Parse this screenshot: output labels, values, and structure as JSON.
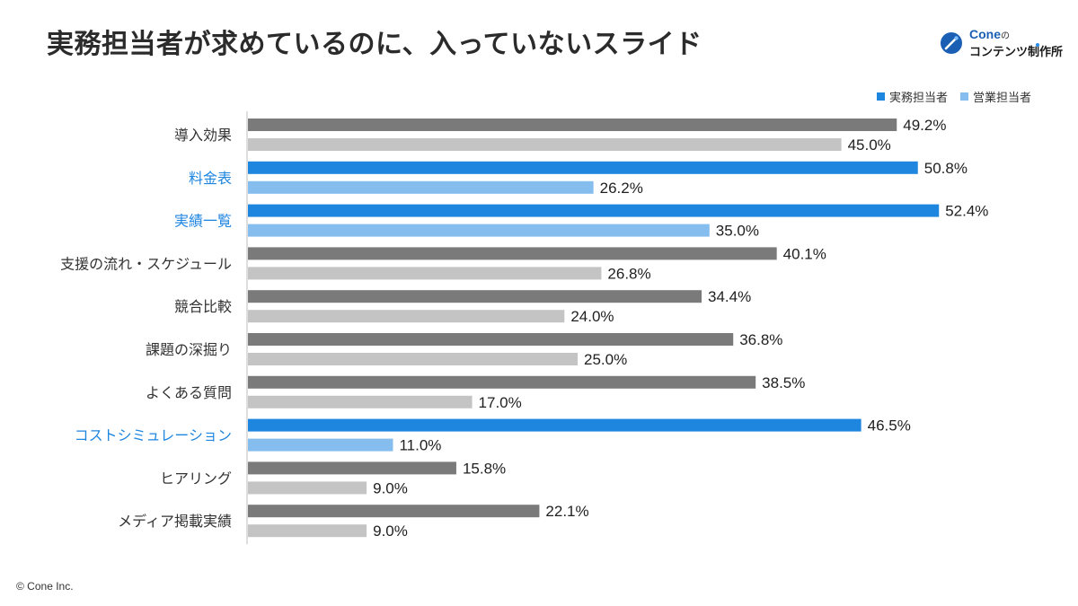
{
  "title": "実務担当者が求めているのに、入っていないスライド",
  "logo": {
    "brand": "Cone",
    "brand_suffix": "の",
    "subtitle": "コンテンツ制作所",
    "icon": "cone-logo-mark"
  },
  "copyright": "© Cone Inc.",
  "colors": {
    "practitioner_highlight": "#1f86e0",
    "sales_highlight": "#85bdee",
    "practitioner_default": "#7a7a7a",
    "sales_default": "#c4c4c4",
    "highlight_label": "#1f86e0",
    "default_label": "#333333"
  },
  "chart_data": {
    "type": "bar",
    "orientation": "horizontal",
    "categories": [
      "導入効果",
      "料金表",
      "実績一覧",
      "支援の流れ・スケジュール",
      "競合比較",
      "課題の深掘り",
      "よくある質問",
      "コストシミュレーション",
      "ヒアリング",
      "メディア掲載実績"
    ],
    "highlighted": [
      false,
      true,
      true,
      false,
      false,
      false,
      false,
      true,
      false,
      false
    ],
    "series": [
      {
        "name": "実務担当者",
        "values": [
          49.2,
          50.8,
          52.4,
          40.1,
          34.4,
          36.8,
          38.5,
          46.5,
          15.8,
          22.1
        ],
        "labels": [
          "49.2%",
          "50.8%",
          "52.4%",
          "40.1%",
          "34.4%",
          "36.8%",
          "38.5%",
          "46.5%",
          "15.8%",
          "22.1%"
        ]
      },
      {
        "name": "営業担当者",
        "values": [
          45.0,
          26.2,
          35.0,
          26.8,
          24.0,
          25.0,
          17.0,
          11.0,
          9.0,
          9.0
        ],
        "labels": [
          "45.0%",
          "26.2%",
          "35.0%",
          "26.8%",
          "24.0%",
          "25.0%",
          "17.0%",
          "11.0%",
          "9.0%",
          "9.0%"
        ]
      }
    ],
    "xlim": [
      0,
      55
    ],
    "grid": false,
    "legend_position": "top-right"
  }
}
